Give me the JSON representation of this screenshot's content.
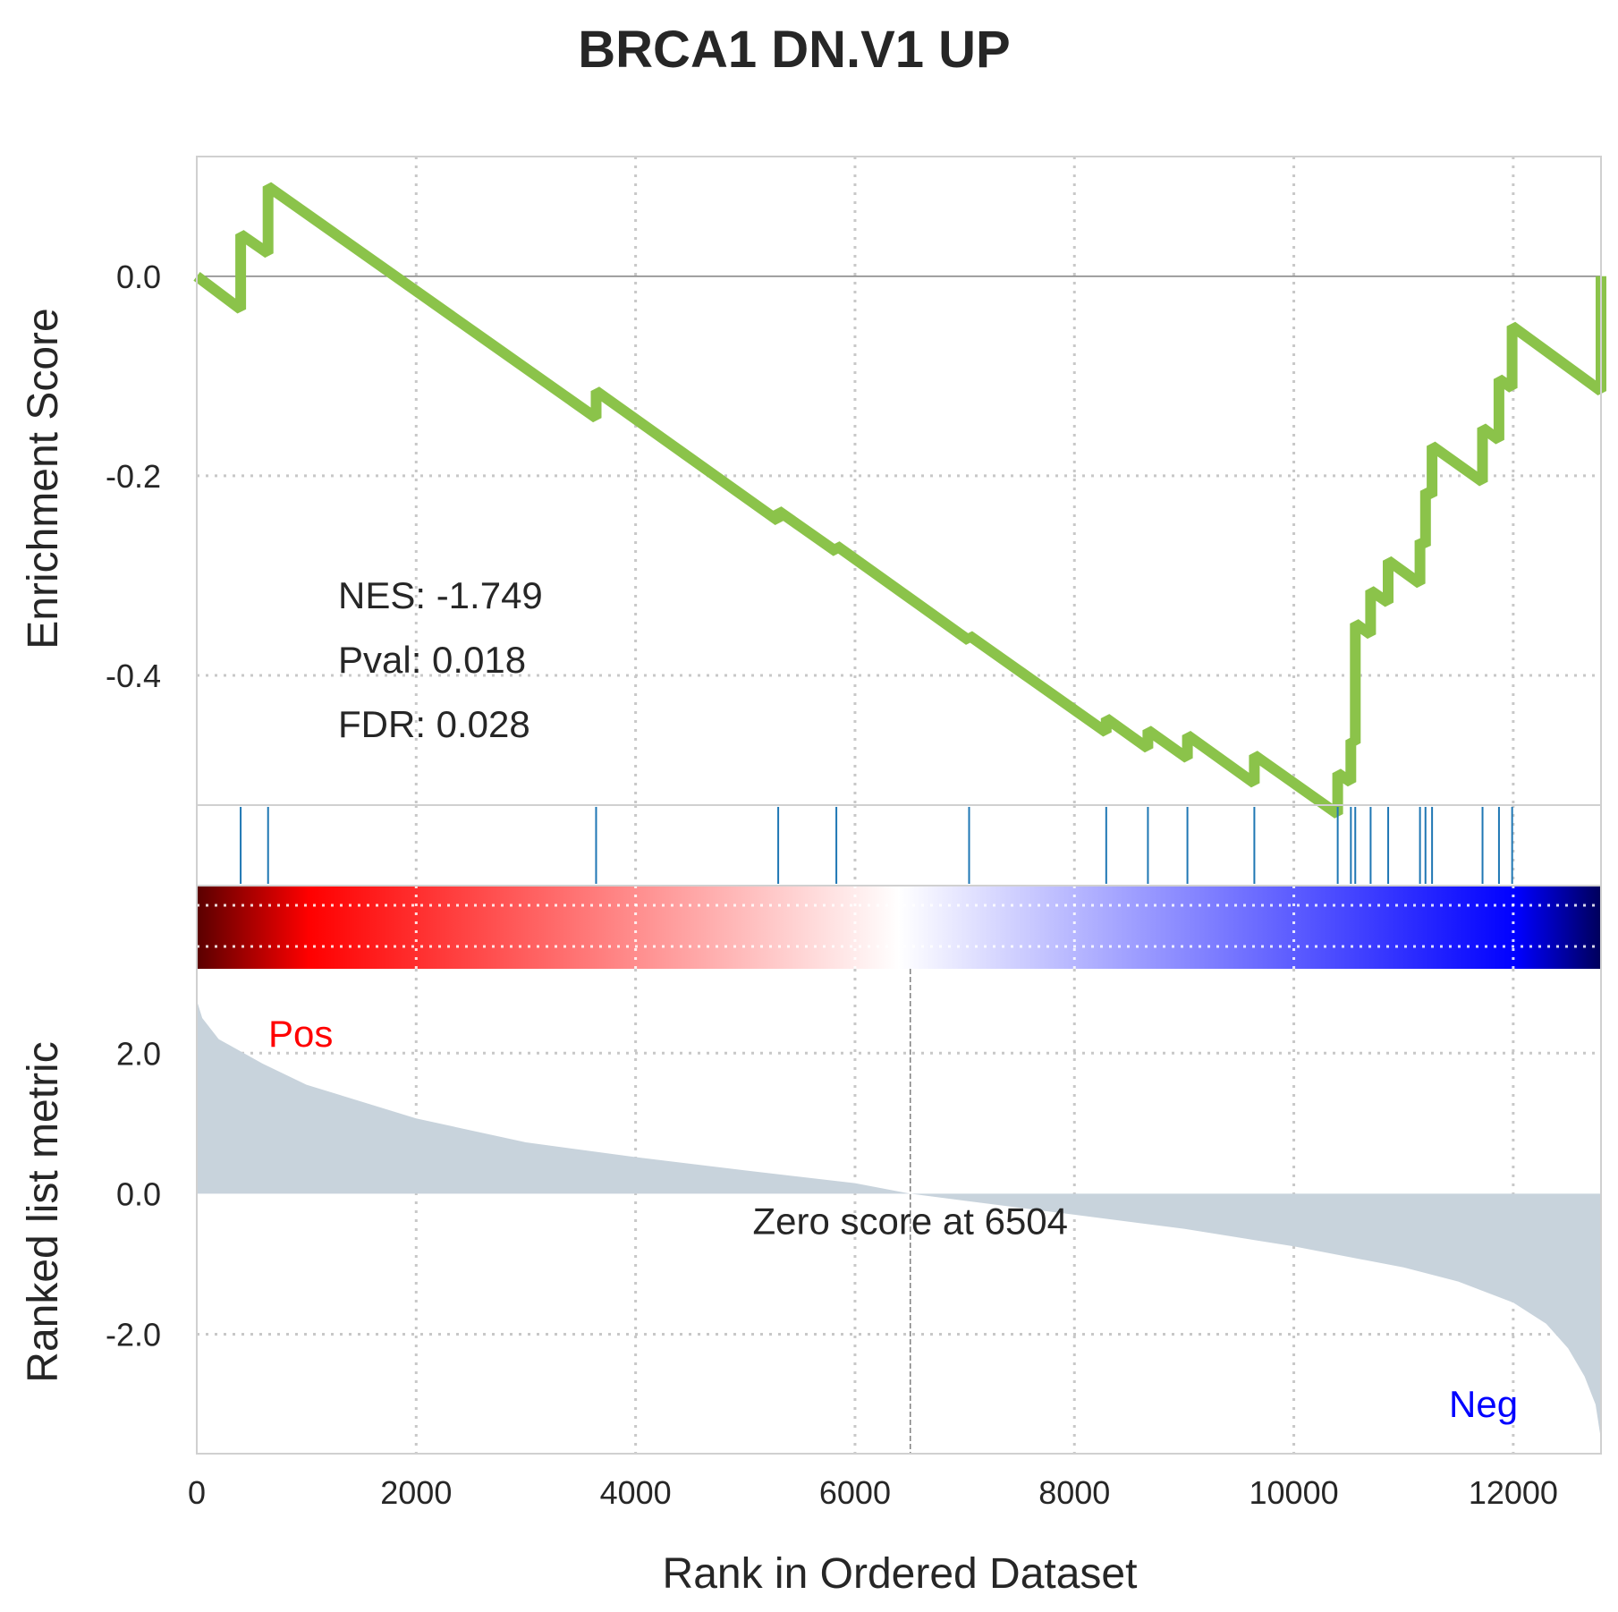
{
  "chart_data": {
    "type": "line",
    "title": "BRCA1 DN.V1 UP",
    "x_max": 12800,
    "xlabel": "Rank in Ordered Dataset",
    "xticks": [
      0,
      2000,
      4000,
      6000,
      8000,
      10000,
      12000
    ],
    "panels": {
      "enrichment": {
        "ylabel": "Enrichment Score",
        "ylim": [
          -0.53,
          0.12
        ],
        "yticks": [
          0.0,
          -0.2,
          -0.4
        ],
        "ytick_labels": [
          "0.0",
          "-0.2",
          "-0.4"
        ],
        "line_color": "#8bc34a",
        "hit_ranks": [
          400,
          650,
          3640,
          5300,
          5830,
          7040,
          8290,
          8670,
          9030,
          9640,
          10400,
          10520,
          10560,
          10700,
          10860,
          11150,
          11200,
          11260,
          11720,
          11870,
          11990,
          12800
        ],
        "running_es": [
          [
            0,
            0.0
          ],
          [
            400,
            -0.033
          ],
          [
            400,
            0.042
          ],
          [
            650,
            0.023
          ],
          [
            650,
            0.09
          ],
          [
            3640,
            -0.142
          ],
          [
            3640,
            -0.115
          ],
          [
            5300,
            -0.245
          ],
          [
            5300,
            -0.235
          ],
          [
            5830,
            -0.276
          ],
          [
            5830,
            -0.27
          ],
          [
            7040,
            -0.365
          ],
          [
            7040,
            -0.36
          ],
          [
            8290,
            -0.457
          ],
          [
            8290,
            -0.443
          ],
          [
            8670,
            -0.473
          ],
          [
            8670,
            -0.455
          ],
          [
            9030,
            -0.483
          ],
          [
            9030,
            -0.46
          ],
          [
            9640,
            -0.508
          ],
          [
            9640,
            -0.48
          ],
          [
            10400,
            -0.539
          ],
          [
            10400,
            -0.498
          ],
          [
            10520,
            -0.507
          ],
          [
            10520,
            -0.465
          ],
          [
            10560,
            -0.468
          ],
          [
            10560,
            -0.348
          ],
          [
            10700,
            -0.359
          ],
          [
            10700,
            -0.315
          ],
          [
            10860,
            -0.327
          ],
          [
            10860,
            -0.285
          ],
          [
            11150,
            -0.308
          ],
          [
            11150,
            -0.265
          ],
          [
            11200,
            -0.27
          ],
          [
            11200,
            -0.215
          ],
          [
            11260,
            -0.22
          ],
          [
            11260,
            -0.17
          ],
          [
            11720,
            -0.206
          ],
          [
            11720,
            -0.152
          ],
          [
            11870,
            -0.164
          ],
          [
            11870,
            -0.103
          ],
          [
            11990,
            -0.112
          ],
          [
            11990,
            -0.05
          ],
          [
            12800,
            -0.115
          ],
          [
            12800,
            0.0
          ]
        ],
        "stats": {
          "nes": "NES: -1.749",
          "pval": "Pval: 0.018",
          "fdr": "FDR: 0.028"
        }
      },
      "hits": {
        "color": "#1f77b4"
      },
      "heatmap": {
        "colors": [
          "#5a0000",
          "#ff0000",
          "#ffffff",
          "#0000ff",
          "#00005a"
        ]
      },
      "ranked_metric": {
        "ylabel": "Ranked list metric",
        "ylim": [
          -3.7,
          3.2
        ],
        "yticks": [
          2.0,
          0.0,
          -2.0
        ],
        "ytick_labels": [
          "2.0",
          "0.0",
          "-2.0"
        ],
        "fill_color": "#c8d3dc",
        "curve": [
          [
            0,
            2.75
          ],
          [
            50,
            2.5
          ],
          [
            200,
            2.2
          ],
          [
            600,
            1.85
          ],
          [
            1000,
            1.55
          ],
          [
            2000,
            1.07
          ],
          [
            3000,
            0.73
          ],
          [
            4000,
            0.52
          ],
          [
            5000,
            0.33
          ],
          [
            6000,
            0.15
          ],
          [
            6504,
            0.0
          ],
          [
            7000,
            -0.1
          ],
          [
            8000,
            -0.3
          ],
          [
            9000,
            -0.5
          ],
          [
            10000,
            -0.75
          ],
          [
            11000,
            -1.05
          ],
          [
            11500,
            -1.25
          ],
          [
            12000,
            -1.55
          ],
          [
            12300,
            -1.85
          ],
          [
            12500,
            -2.2
          ],
          [
            12650,
            -2.6
          ],
          [
            12750,
            -3.0
          ],
          [
            12800,
            -3.5
          ]
        ],
        "zero_rank": 6504,
        "zero_label": "Zero score at 6504",
        "pos_label": "Pos",
        "neg_label": "Neg",
        "pos_color": "#ff0000",
        "neg_color": "#0000ff"
      }
    }
  }
}
